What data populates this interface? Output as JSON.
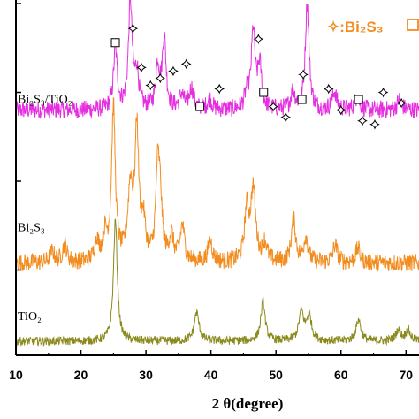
{
  "chart_data": {
    "type": "line",
    "xlabel": "2 θ(degree)",
    "xlim": [
      10,
      72
    ],
    "x_ticks": [
      10,
      20,
      30,
      40,
      50,
      60,
      70
    ],
    "x_tick_labels": [
      "10",
      "20",
      "30",
      "40",
      "50",
      "60",
      "70"
    ],
    "ylim": [
      0,
      1
    ],
    "y_tick_values": [
      0.0,
      0.24,
      0.49,
      0.74,
      0.99
    ],
    "grid": false,
    "legend": {
      "placement": "top-right",
      "entries": [
        {
          "marker": "diamond",
          "label": "✧:Bi₂S₃"
        },
        {
          "marker": "square",
          "label": ""
        }
      ]
    },
    "series": [
      {
        "name": "Bi₂S₃/TiO₂",
        "color": "#e52ee0",
        "baseline": 0.69,
        "noise": 0.025,
        "peaks": [
          {
            "x": 25.3,
            "h": 0.17,
            "w": 0.35
          },
          {
            "x": 27.6,
            "h": 0.3,
            "w": 0.35
          },
          {
            "x": 28.6,
            "h": 0.1,
            "w": 0.35
          },
          {
            "x": 31.8,
            "h": 0.12,
            "w": 0.35
          },
          {
            "x": 32.8,
            "h": 0.2,
            "w": 0.35
          },
          {
            "x": 35.5,
            "h": 0.04,
            "w": 0.4
          },
          {
            "x": 37.0,
            "h": 0.06,
            "w": 0.4
          },
          {
            "x": 39.8,
            "h": 0.03,
            "w": 0.4
          },
          {
            "x": 45.5,
            "h": 0.04,
            "w": 0.4
          },
          {
            "x": 46.5,
            "h": 0.22,
            "w": 0.35
          },
          {
            "x": 47.5,
            "h": 0.12,
            "w": 0.35
          },
          {
            "x": 52.6,
            "h": 0.05,
            "w": 0.4
          },
          {
            "x": 54.8,
            "h": 0.3,
            "w": 0.35
          },
          {
            "x": 59.0,
            "h": 0.05,
            "w": 0.4
          },
          {
            "x": 62.5,
            "h": 0.04,
            "w": 0.4
          },
          {
            "x": 69.0,
            "h": 0.03,
            "w": 0.4
          }
        ]
      },
      {
        "name": "Bi₂S₃",
        "color": "#f28c1e",
        "baseline": 0.26,
        "noise": 0.025,
        "peaks": [
          {
            "x": 15.6,
            "h": 0.03,
            "w": 0.4
          },
          {
            "x": 17.5,
            "h": 0.05,
            "w": 0.4
          },
          {
            "x": 22.4,
            "h": 0.06,
            "w": 0.4
          },
          {
            "x": 23.7,
            "h": 0.07,
            "w": 0.4
          },
          {
            "x": 25.0,
            "h": 0.43,
            "w": 0.35
          },
          {
            "x": 27.6,
            "h": 0.2,
            "w": 0.45
          },
          {
            "x": 28.6,
            "h": 0.36,
            "w": 0.35
          },
          {
            "x": 29.6,
            "h": 0.1,
            "w": 0.4
          },
          {
            "x": 31.8,
            "h": 0.24,
            "w": 0.35
          },
          {
            "x": 32.2,
            "h": 0.14,
            "w": 0.35
          },
          {
            "x": 33.9,
            "h": 0.07,
            "w": 0.4
          },
          {
            "x": 35.6,
            "h": 0.1,
            "w": 0.4
          },
          {
            "x": 39.9,
            "h": 0.06,
            "w": 0.4
          },
          {
            "x": 45.5,
            "h": 0.14,
            "w": 0.4
          },
          {
            "x": 46.5,
            "h": 0.2,
            "w": 0.45
          },
          {
            "x": 48.3,
            "h": 0.05,
            "w": 0.4
          },
          {
            "x": 52.7,
            "h": 0.12,
            "w": 0.4
          },
          {
            "x": 54.6,
            "h": 0.07,
            "w": 0.4
          },
          {
            "x": 59.1,
            "h": 0.05,
            "w": 0.4
          },
          {
            "x": 62.6,
            "h": 0.04,
            "w": 0.4
          }
        ]
      },
      {
        "name": "TiO₂",
        "color": "#8a8a1e",
        "baseline": 0.04,
        "noise": 0.012,
        "peaks": [
          {
            "x": 25.3,
            "h": 0.34,
            "w": 0.35
          },
          {
            "x": 37.8,
            "h": 0.08,
            "w": 0.45
          },
          {
            "x": 48.0,
            "h": 0.11,
            "w": 0.4
          },
          {
            "x": 53.9,
            "h": 0.08,
            "w": 0.45
          },
          {
            "x": 55.1,
            "h": 0.07,
            "w": 0.45
          },
          {
            "x": 62.7,
            "h": 0.06,
            "w": 0.45
          },
          {
            "x": 68.8,
            "h": 0.03,
            "w": 0.45
          },
          {
            "x": 70.3,
            "h": 0.03,
            "w": 0.45
          }
        ]
      }
    ],
    "markers": {
      "diamond": [
        {
          "x": 28.0,
          "y": 0.92
        },
        {
          "x": 29.3,
          "y": 0.81
        },
        {
          "x": 30.7,
          "y": 0.76
        },
        {
          "x": 32.2,
          "y": 0.78
        },
        {
          "x": 34.2,
          "y": 0.8
        },
        {
          "x": 36.2,
          "y": 0.82
        },
        {
          "x": 41.3,
          "y": 0.75
        },
        {
          "x": 47.3,
          "y": 0.89
        },
        {
          "x": 49.6,
          "y": 0.7
        },
        {
          "x": 51.5,
          "y": 0.67
        },
        {
          "x": 54.2,
          "y": 0.79
        },
        {
          "x": 58.1,
          "y": 0.75
        },
        {
          "x": 60.0,
          "y": 0.69
        },
        {
          "x": 63.3,
          "y": 0.66
        },
        {
          "x": 65.2,
          "y": 0.65
        },
        {
          "x": 66.5,
          "y": 0.74
        },
        {
          "x": 69.3,
          "y": 0.71
        }
      ],
      "square": [
        {
          "x": 25.3,
          "y": 0.88
        },
        {
          "x": 38.3,
          "y": 0.7
        },
        {
          "x": 48.1,
          "y": 0.74
        },
        {
          "x": 54.0,
          "y": 0.72
        },
        {
          "x": 62.7,
          "y": 0.72
        }
      ]
    }
  }
}
